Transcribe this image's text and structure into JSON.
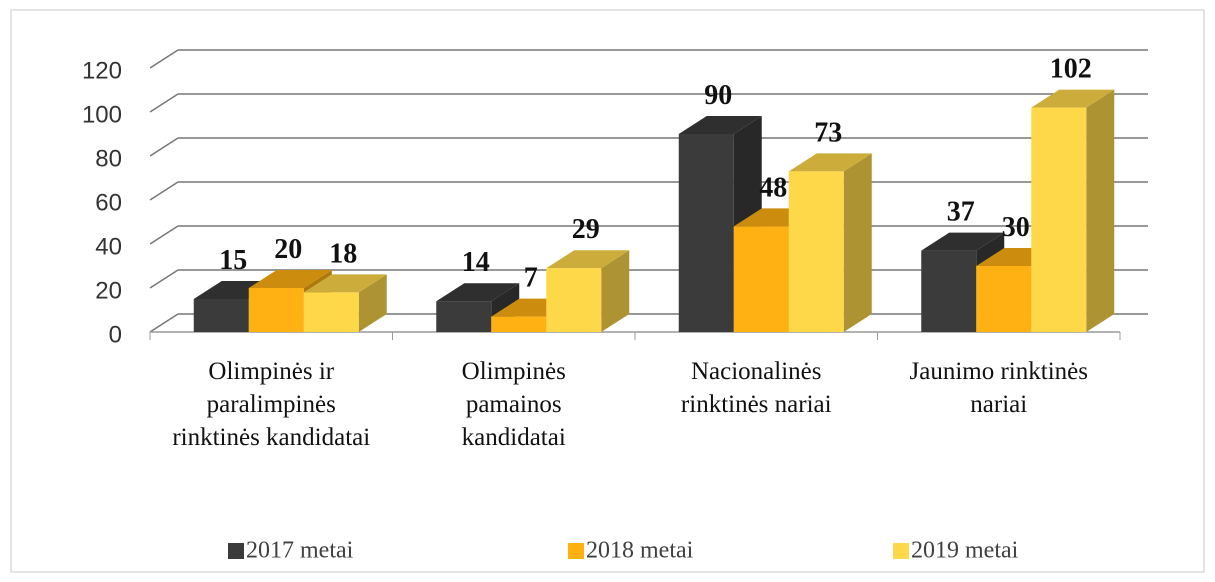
{
  "chart_data": {
    "type": "bar3d",
    "categories": [
      "Olimpinės ir paralimpinės rinktinės kandidatai",
      "Olimpinės pamainos kandidatai",
      "Nacionalinės rinktinės nariai",
      "Jaunimo rinktinės nariai"
    ],
    "series": [
      {
        "name": "2017 metai",
        "color": "#3b3b3b",
        "values": [
          15,
          14,
          90,
          37
        ]
      },
      {
        "name": "2018 metai",
        "color": "#ffb012",
        "values": [
          20,
          7,
          48,
          30
        ]
      },
      {
        "name": "2019 metai",
        "color": "#ffd84a",
        "values": [
          18,
          29,
          73,
          102
        ]
      }
    ],
    "ylim": [
      0,
      120
    ],
    "yticks": [
      0,
      20,
      40,
      60,
      80,
      100,
      120
    ],
    "grid": true,
    "legend": "bottom"
  }
}
